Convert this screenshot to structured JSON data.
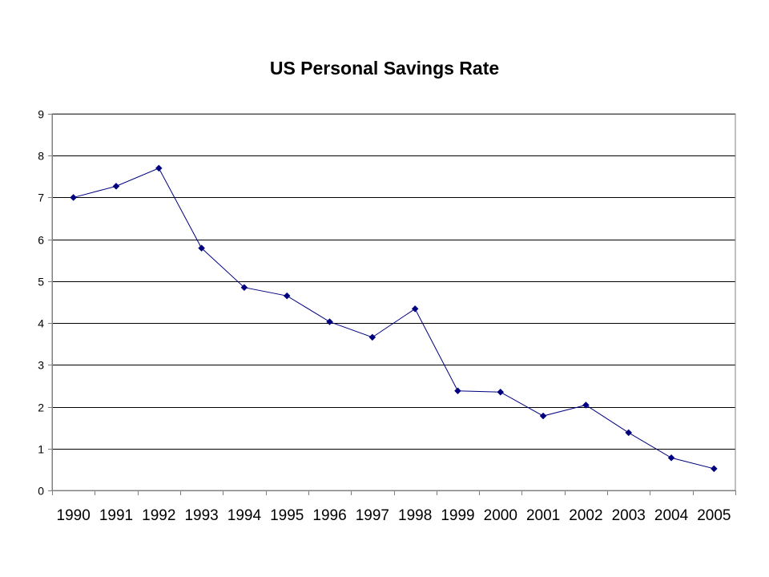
{
  "chart_data": {
    "type": "line",
    "title": "US Personal Savings Rate",
    "xlabel": "",
    "ylabel": "",
    "categories": [
      "1990",
      "1991",
      "1992",
      "1993",
      "1994",
      "1995",
      "1996",
      "1997",
      "1998",
      "1999",
      "2000",
      "2001",
      "2002",
      "2003",
      "2004",
      "2005"
    ],
    "series": [
      {
        "values": [
          7.0,
          7.27,
          7.7,
          5.79,
          4.85,
          4.65,
          4.03,
          3.66,
          4.34,
          2.38,
          2.35,
          1.78,
          2.04,
          1.38,
          0.78,
          0.52
        ]
      }
    ],
    "ylim": [
      0,
      9
    ],
    "yticks": [
      "0",
      "1",
      "2",
      "3",
      "4",
      "5",
      "6",
      "7",
      "8",
      "9"
    ],
    "grid": "horizontal",
    "legend": "none",
    "colors": {
      "line": "#000080",
      "marker": "#000080",
      "grid": "#000000",
      "axis": "#808080"
    }
  }
}
